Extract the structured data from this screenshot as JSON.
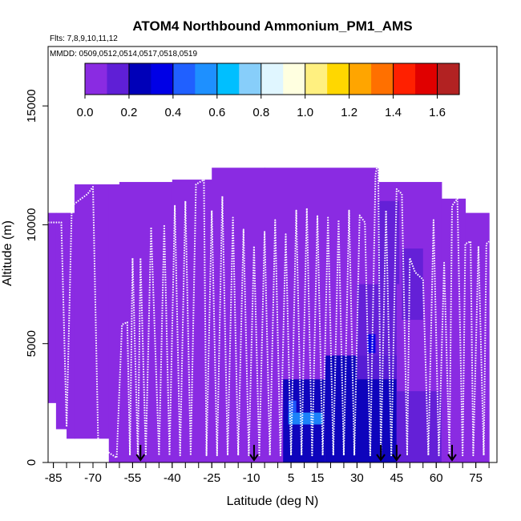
{
  "chart_data": {
    "type": "heatmap",
    "title": "ATOM4 Northbound Ammonium_PM1_AMS",
    "flights_label": "Flts: 7,8,9,10,11,12",
    "mmdd_label": "MMDD: 0509,0512,0514,0517,0518,0519",
    "xlabel": "Latitude (deg N)",
    "ylabel": "Altitude (m)",
    "xlim": [
      -87,
      83
    ],
    "ylim": [
      0,
      17500
    ],
    "x_ticks": [
      -85,
      -70,
      -55,
      -40,
      -25,
      -10,
      5,
      15,
      30,
      45,
      60,
      75
    ],
    "x_ticklabels": [
      "-85",
      "-70",
      "-55",
      "-40",
      "-25",
      "-10",
      "5",
      "15",
      "30",
      "45",
      "60",
      "75"
    ],
    "y_ticks": [
      0,
      5000,
      10000,
      15000
    ],
    "y_ticklabels": [
      "0",
      "5000",
      "10000",
      "15000"
    ],
    "colorbar": {
      "min": 0.0,
      "max": 1.7,
      "ticks": [
        0.0,
        0.2,
        0.4,
        0.6,
        0.8,
        1.0,
        1.2,
        1.4,
        1.6
      ],
      "ticklabels": [
        "0.0",
        "0.2",
        "0.4",
        "0.6",
        "0.8",
        "1.0",
        "1.2",
        "1.4",
        "1.6"
      ],
      "colors": [
        "#8a2be2",
        "#5f1fd6",
        "#0000b8",
        "#0000e6",
        "#2060ff",
        "#1e90ff",
        "#00bfff",
        "#87cefa",
        "#e0f6ff",
        "#ffffe0",
        "#fff080",
        "#ffd700",
        "#ffa500",
        "#ff7000",
        "#ff2000",
        "#e00000",
        "#b22222"
      ]
    },
    "background_color": "#8a2be2",
    "curtain": [
      {
        "lat0": -87,
        "lat1": -77,
        "top": 10500
      },
      {
        "lat0": -77,
        "lat1": -60,
        "top": 11700
      },
      {
        "lat0": -60,
        "lat1": -40,
        "top": 11800
      },
      {
        "lat0": -40,
        "lat1": -25,
        "top": 11900
      },
      {
        "lat0": -25,
        "lat1": -5,
        "top": 12400
      },
      {
        "lat0": -5,
        "lat1": 38,
        "top": 12400
      },
      {
        "lat0": 38,
        "lat1": 62,
        "top": 11800
      },
      {
        "lat0": 62,
        "lat1": 71,
        "top": 11100
      },
      {
        "lat0": 71,
        "lat1": 80,
        "top": 10500
      }
    ],
    "curtain_bottom": [
      {
        "lat0": -87,
        "lat1": -84,
        "bottom": 2500
      },
      {
        "lat0": -84,
        "lat1": -80,
        "bottom": 1400
      },
      {
        "lat0": -80,
        "lat1": -64,
        "bottom": 1000
      },
      {
        "lat0": -64,
        "lat1": 80,
        "bottom": 0
      }
    ],
    "enhanced_cells": [
      {
        "lat0": 2,
        "lat1": 18,
        "alt0": 0,
        "alt1": 3500,
        "value": 0.22
      },
      {
        "lat0": 18,
        "lat1": 45,
        "alt0": 0,
        "alt1": 4500,
        "value": 0.2
      },
      {
        "lat0": 30,
        "lat1": 45,
        "alt0": 3500,
        "alt1": 7500,
        "value": 0.16
      },
      {
        "lat0": 45,
        "lat1": 62,
        "alt0": 0,
        "alt1": 3000,
        "value": 0.12
      },
      {
        "lat0": 38,
        "lat1": 46,
        "alt0": 7500,
        "alt1": 11000,
        "value": 0.1
      },
      {
        "lat0": 4,
        "lat1": 17,
        "alt0": 1600,
        "alt1": 2100,
        "value": 0.5
      },
      {
        "lat0": 4,
        "lat1": 7,
        "alt0": 2100,
        "alt1": 2600,
        "value": 0.4
      },
      {
        "lat0": 34,
        "lat1": 37,
        "alt0": 4600,
        "alt1": 5400,
        "value": 0.35
      },
      {
        "lat0": 47,
        "lat1": 55,
        "alt0": 6000,
        "alt1": 9000,
        "value": 0.15
      }
    ],
    "flight_track": [
      [
        -87,
        10100
      ],
      [
        -82,
        10100
      ],
      [
        -80,
        1500
      ],
      [
        -78,
        10800
      ],
      [
        -72,
        11300
      ],
      [
        -70,
        11600
      ],
      [
        -68,
        700
      ],
      [
        -61,
        200
      ],
      [
        -59,
        5800
      ],
      [
        -57,
        5900
      ],
      [
        -56,
        300
      ],
      [
        -55,
        8600
      ],
      [
        -53,
        300
      ],
      [
        -52,
        8600
      ],
      [
        -50,
        300
      ],
      [
        -48,
        9900
      ],
      [
        -45,
        300
      ],
      [
        -43,
        10000
      ],
      [
        -41,
        300
      ],
      [
        -39,
        10800
      ],
      [
        -37,
        300
      ],
      [
        -35,
        11000
      ],
      [
        -33,
        300
      ],
      [
        -31,
        11700
      ],
      [
        -28,
        11900
      ],
      [
        -27,
        300
      ],
      [
        -25,
        10600
      ],
      [
        -23,
        300
      ],
      [
        -21,
        11200
      ],
      [
        -19,
        300
      ],
      [
        -17,
        10300
      ],
      [
        -15,
        300
      ],
      [
        -13,
        9800
      ],
      [
        -11,
        300
      ],
      [
        -9,
        9100
      ],
      [
        -7,
        300
      ],
      [
        -5,
        9700
      ],
      [
        -3,
        300
      ],
      [
        -1,
        10200
      ],
      [
        1,
        300
      ],
      [
        3,
        9600
      ],
      [
        5,
        300
      ],
      [
        7,
        10600
      ],
      [
        9,
        300
      ],
      [
        11,
        10700
      ],
      [
        13,
        300
      ],
      [
        15,
        10400
      ],
      [
        17,
        300
      ],
      [
        19,
        10300
      ],
      [
        21,
        300
      ],
      [
        23,
        10200
      ],
      [
        25,
        300
      ],
      [
        27,
        10600
      ],
      [
        29,
        300
      ],
      [
        31,
        10400
      ],
      [
        33,
        10100
      ],
      [
        35,
        300
      ],
      [
        37,
        12100
      ],
      [
        38,
        12700
      ],
      [
        39,
        300
      ],
      [
        41,
        10600
      ],
      [
        43,
        300
      ],
      [
        45,
        11500
      ],
      [
        47,
        11300
      ],
      [
        49,
        300
      ],
      [
        50,
        8600
      ],
      [
        52,
        8000
      ],
      [
        55,
        7700
      ],
      [
        57,
        300
      ],
      [
        59,
        10200
      ],
      [
        61,
        300
      ],
      [
        63,
        8400
      ],
      [
        65,
        300
      ],
      [
        66,
        10800
      ],
      [
        68,
        11100
      ],
      [
        70,
        300
      ],
      [
        71,
        9200
      ],
      [
        73,
        9300
      ],
      [
        74,
        300
      ],
      [
        76,
        9100
      ],
      [
        78,
        300
      ],
      [
        79,
        9200
      ],
      [
        80,
        9300
      ]
    ],
    "flight_marker_lats": [
      -52,
      -9,
      39,
      45,
      66
    ]
  }
}
